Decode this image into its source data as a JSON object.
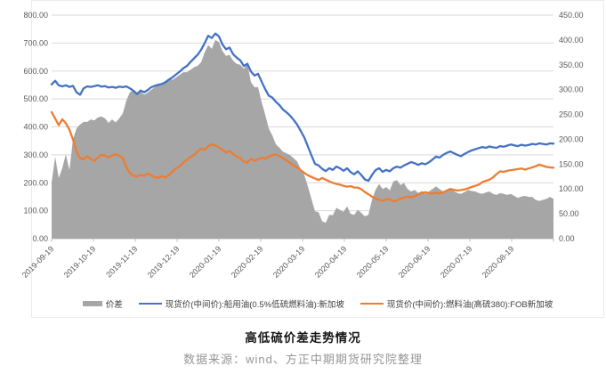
{
  "page": {
    "title": "高低硫价差走势情况",
    "source_note": "数据来源：wind、方正中期期货研究院整理"
  },
  "colors": {
    "spread_area": "#a6a6a6",
    "lsfo_line": "#4472c4",
    "hsfo_line": "#ed7d31",
    "gridline": "#d9d9d9",
    "axis_line": "#bfbfbf",
    "axis_text": "#595959",
    "title_text": "#151515",
    "source_text": "#969696",
    "panel_border": "#ebebeb"
  },
  "legend": [
    {
      "label": "价差"
    },
    {
      "label": "现货价(中间价):船用油(0.5%低硫燃料油):新加坡"
    },
    {
      "label": "现货价(中间价):燃料油(高硫380):FOB新加坡"
    }
  ],
  "chart_data": {
    "type": "combo: gray area (right axis) + two lines (left axis)",
    "title": "高低硫价差走势情况",
    "grid": "horizontal gridlines on, left-axis steps",
    "legend_position": "bottom center",
    "x_tick_labels": [
      "2019-09-19",
      "2019-10-19",
      "2019-11-19",
      "2019-12-19",
      "2020-01-19",
      "2020-02-19",
      "2020-03-19",
      "2020-04-19",
      "2020-05-19",
      "2020-06-19",
      "2020-07-19",
      "2020-08-19"
    ],
    "x_note": "daily data from 2019-09-19 through late Aug 2020; series sampled at 142 evenly spaced points",
    "left_axis": {
      "min": 0,
      "max": 800,
      "step": 100,
      "tick_labels": [
        "800.00",
        "700.00",
        "600.00",
        "500.00",
        "400.00",
        "300.00",
        "200.00",
        "100.00",
        "0.00"
      ]
    },
    "right_axis": {
      "min": 0,
      "max": 450,
      "step": 50,
      "tick_labels": [
        "450.00",
        "400.00",
        "350.00",
        "300.00",
        "250.00",
        "200.00",
        "150.00",
        "100.00",
        "50.00",
        "0.00"
      ]
    },
    "series": [
      {
        "name": "价差",
        "type": "area",
        "axis": "right",
        "color": "#a6a6a6",
        "values": [
          113,
          165,
          122,
          142,
          170,
          138,
          200,
          222,
          230,
          235,
          235,
          240,
          238,
          244,
          246,
          242,
          233,
          240,
          234,
          242,
          252,
          278,
          295,
          298,
          292,
          296,
          290,
          294,
          300,
          305,
          310,
          312,
          318,
          322,
          320,
          325,
          330,
          335,
          335,
          340,
          345,
          348,
          355,
          375,
          390,
          382,
          400,
          396,
          378,
          368,
          370,
          358,
          352,
          350,
          342,
          352,
          315,
          305,
          305,
          275,
          250,
          222,
          208,
          190,
          183,
          175,
          172,
          168,
          162,
          155,
          140,
          128,
          105,
          80,
          55,
          53,
          35,
          32,
          48,
          47,
          62,
          58,
          54,
          65,
          50,
          48,
          58,
          52,
          45,
          48,
          78,
          98,
          110,
          100,
          104,
          97,
          115,
          118,
          108,
          112,
          100,
          95,
          98,
          92,
          96,
          90,
          95,
          100,
          105,
          100,
          95,
          98,
          100,
          96,
          92,
          90,
          94,
          98,
          96,
          95,
          92,
          90,
          93,
          95,
          90,
          88,
          92,
          90,
          88,
          90,
          86,
          82,
          85,
          86,
          84,
          84,
          78,
          76,
          78,
          80,
          84,
          80
        ]
      },
      {
        "name": "现货价(中间价):船用油(0.5%低硫燃料油):新加坡",
        "type": "line",
        "axis": "left",
        "color": "#4472c4",
        "values": [
          552,
          565,
          549,
          545,
          549,
          543,
          547,
          524,
          515,
          538,
          545,
          543,
          546,
          549,
          544,
          546,
          541,
          543,
          540,
          544,
          542,
          545,
          538,
          529,
          518,
          530,
          524,
          532,
          542,
          547,
          551,
          554,
          560,
          570,
          578,
          588,
          598,
          610,
          618,
          632,
          645,
          658,
          676,
          700,
          726,
          718,
          734,
          724,
          695,
          678,
          684,
          660,
          648,
          638,
          618,
          626,
          598,
          584,
          590,
          562,
          535,
          512,
          505,
          490,
          478,
          462,
          452,
          440,
          425,
          408,
          385,
          362,
          330,
          298,
          268,
          262,
          250,
          242,
          252,
          246,
          258,
          252,
          243,
          252,
          238,
          230,
          241,
          228,
          212,
          207,
          228,
          245,
          252,
          239,
          246,
          241,
          252,
          258,
          254,
          262,
          268,
          274,
          270,
          264,
          270,
          266,
          273,
          283,
          294,
          290,
          300,
          307,
          312,
          306,
          300,
          295,
          303,
          310,
          316,
          320,
          324,
          328,
          325,
          330,
          327,
          325,
          331,
          329,
          333,
          337,
          334,
          331,
          336,
          333,
          335,
          339,
          337,
          341,
          339,
          337,
          341,
          340
        ]
      },
      {
        "name": "现货价(中间价):燃料油(高硫380):FOB新加坡",
        "type": "line",
        "axis": "left",
        "color": "#ed7d31",
        "values": [
          453,
          430,
          406,
          427,
          413,
          390,
          355,
          310,
          288,
          285,
          295,
          286,
          278,
          290,
          301,
          297,
          291,
          298,
          302,
          297,
          288,
          255,
          235,
          225,
          222,
          228,
          225,
          233,
          227,
          220,
          218,
          224,
          218,
          228,
          240,
          252,
          259,
          272,
          282,
          292,
          300,
          312,
          322,
          318,
          330,
          338,
          333,
          327,
          318,
          308,
          314,
          303,
          294,
          288,
          276,
          272,
          286,
          279,
          284,
          290,
          286,
          293,
          299,
          302,
          295,
          288,
          280,
          271,
          262,
          254,
          245,
          235,
          227,
          221,
          215,
          210,
          217,
          211,
          205,
          200,
          196,
          193,
          189,
          186,
          188,
          183,
          183,
          177,
          167,
          159,
          150,
          144,
          139,
          136,
          140,
          142,
          133,
          137,
          143,
          147,
          150,
          148,
          152,
          158,
          164,
          166,
          163,
          161,
          164,
          162,
          166,
          172,
          178,
          175,
          172,
          174,
          176,
          180,
          185,
          189,
          193,
          202,
          207,
          211,
          219,
          231,
          241,
          239,
          243,
          245,
          247,
          249,
          251,
          247,
          251,
          255,
          259,
          265,
          261,
          257,
          255,
          254
        ]
      }
    ]
  }
}
